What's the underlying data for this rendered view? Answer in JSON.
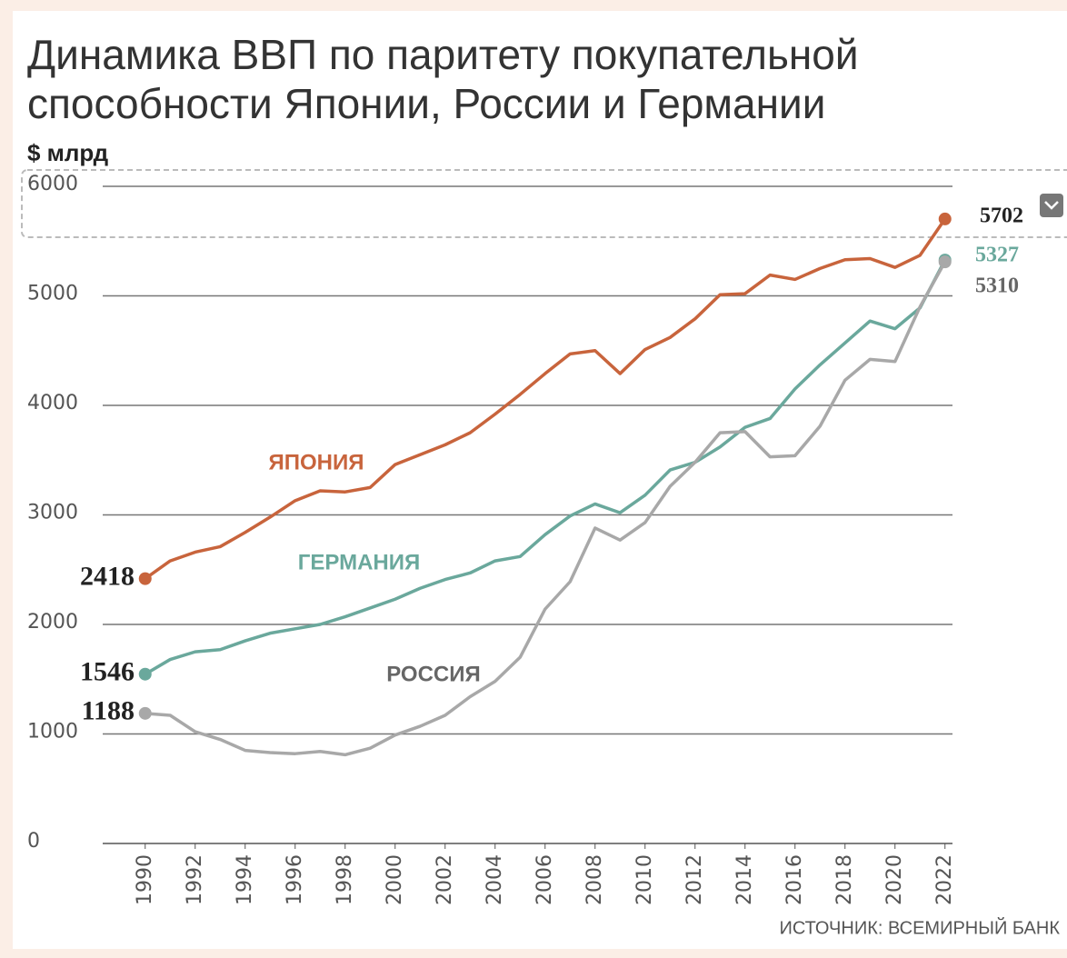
{
  "chart_data": {
    "type": "line",
    "title": [
      "Динамика ВВП по паритету покупательной",
      "способности Японии, России и Германии"
    ],
    "y_label": "$ млрд",
    "source": "ИСТОЧНИК: ВСЕМИРНЫЙ БАНК",
    "x": [
      1990,
      1991,
      1992,
      1993,
      1994,
      1995,
      1996,
      1997,
      1998,
      1999,
      2000,
      2001,
      2002,
      2003,
      2004,
      2005,
      2006,
      2007,
      2008,
      2009,
      2010,
      2011,
      2012,
      2013,
      2014,
      2015,
      2016,
      2017,
      2018,
      2019,
      2020,
      2021,
      2022
    ],
    "xlim": [
      1988.3,
      2022.3
    ],
    "xticks": [
      1990,
      1992,
      1994,
      1996,
      1998,
      2000,
      2002,
      2004,
      2006,
      2008,
      2010,
      2012,
      2014,
      2016,
      2018,
      2020,
      2022
    ],
    "ylim": [
      0,
      6000
    ],
    "yticks": [
      0,
      1000,
      2000,
      3000,
      4000,
      5000,
      6000
    ],
    "grid": true,
    "series": [
      {
        "name": "ЯПОНИЯ",
        "color": "#c8643c",
        "values": [
          2418,
          2580,
          2660,
          2710,
          2840,
          2980,
          3130,
          3220,
          3210,
          3250,
          3460,
          3550,
          3640,
          3750,
          3920,
          4100,
          4290,
          4470,
          4500,
          4290,
          4510,
          4620,
          4790,
          5010,
          5020,
          5190,
          5150,
          5250,
          5330,
          5340,
          5260,
          5370,
          5702
        ]
      },
      {
        "name": "ГЕРМАНИЯ",
        "color": "#6aa89c",
        "values": [
          1546,
          1680,
          1750,
          1770,
          1850,
          1920,
          1960,
          2000,
          2070,
          2150,
          2230,
          2330,
          2410,
          2470,
          2580,
          2620,
          2820,
          2990,
          3100,
          3020,
          3180,
          3410,
          3480,
          3620,
          3800,
          3880,
          4150,
          4370,
          4570,
          4770,
          4700,
          4890,
          5327
        ]
      },
      {
        "name": "РОССИЯ",
        "color": "#a8a8a8",
        "values": [
          1188,
          1170,
          1020,
          950,
          850,
          830,
          820,
          840,
          810,
          870,
          990,
          1070,
          1170,
          1340,
          1480,
          1700,
          2140,
          2390,
          2880,
          2770,
          2930,
          3260,
          3480,
          3750,
          3760,
          3530,
          3540,
          3810,
          4230,
          4420,
          4400,
          4900,
          5310
        ]
      }
    ]
  }
}
